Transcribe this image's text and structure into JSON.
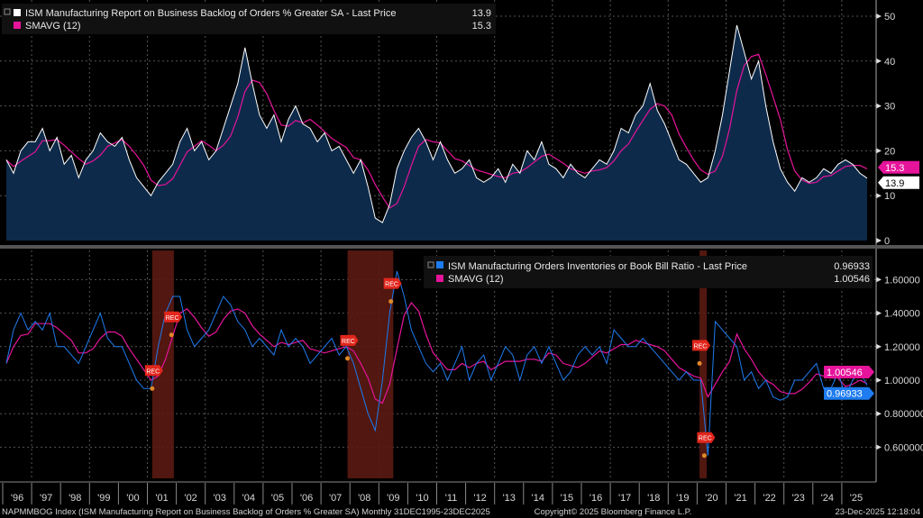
{
  "chart_data": [
    {
      "type": "area",
      "panel": "top",
      "title": "",
      "legend": [
        {
          "label": "ISM Manufacturing Report on Business Backlog of Orders % Greater SA - Last Price",
          "value": "13.9",
          "color": "#ffffff"
        },
        {
          "label": "SMAVG (12)",
          "value": "15.3",
          "color": "#e6149b"
        }
      ],
      "legend_placement": "top-left",
      "start": "1996-01",
      "frequency": "quarterly",
      "values": [
        18,
        15,
        20,
        22,
        22,
        25,
        20,
        23,
        17,
        19,
        14,
        18,
        20,
        24,
        22,
        21,
        23,
        18,
        14,
        12,
        10,
        13,
        15,
        17,
        22,
        25,
        20,
        22,
        18,
        20,
        25,
        30,
        35,
        43,
        35,
        28,
        25,
        28,
        22,
        27,
        30,
        26,
        25,
        22,
        24,
        20,
        21,
        18,
        15,
        18,
        12,
        5,
        4,
        8,
        16,
        20,
        23,
        25,
        22,
        18,
        22,
        18,
        15,
        16,
        18,
        14,
        13,
        14,
        16,
        13,
        17,
        15,
        20,
        18,
        22,
        17,
        16,
        14,
        17,
        15,
        14,
        16,
        18,
        17,
        20,
        25,
        24,
        28,
        30,
        35,
        29,
        26,
        22,
        18,
        17,
        15,
        13,
        14,
        20,
        28,
        38,
        48,
        42,
        36,
        40,
        30,
        22,
        16,
        13,
        11,
        14,
        13,
        14,
        16,
        15,
        17,
        18,
        17,
        15,
        13.9
      ],
      "ylim": [
        0,
        52
      ],
      "yticks": [
        "0",
        "10",
        "20",
        "30",
        "40",
        "50"
      ],
      "tag_last": "13.9",
      "tag_sma": "15.3",
      "colors": {
        "line": "#ffffff",
        "fill": "#0d2a4a",
        "sma": "#e6149b"
      }
    },
    {
      "type": "line",
      "panel": "bottom",
      "legend": [
        {
          "label": "ISM Manufacturing Orders Inventories or Book Bill Ratio - Last Price",
          "value": "0.96933",
          "color": "#1e7cf0"
        },
        {
          "label": "SMAVG (12)",
          "value": "1.00546",
          "color": "#e6149b"
        }
      ],
      "legend_placement": "top-right",
      "start": "1996-01",
      "frequency": "quarterly",
      "values": [
        1.1,
        1.3,
        1.4,
        1.3,
        1.35,
        1.3,
        1.4,
        1.2,
        1.2,
        1.15,
        1.1,
        1.2,
        1.3,
        1.4,
        1.25,
        1.2,
        1.2,
        1.1,
        1.0,
        0.95,
        0.95,
        1.2,
        1.4,
        1.5,
        1.5,
        1.3,
        1.2,
        1.25,
        1.3,
        1.4,
        1.5,
        1.45,
        1.35,
        1.3,
        1.2,
        1.25,
        1.2,
        1.15,
        1.3,
        1.2,
        1.25,
        1.2,
        1.1,
        1.15,
        1.2,
        1.25,
        1.15,
        1.2,
        1.1,
        0.95,
        0.8,
        0.7,
        1.0,
        1.4,
        1.65,
        1.5,
        1.3,
        1.2,
        1.1,
        1.05,
        1.1,
        1.0,
        1.1,
        1.2,
        1.0,
        1.1,
        1.15,
        1.0,
        1.1,
        1.2,
        1.15,
        1.0,
        1.15,
        1.2,
        1.1,
        1.2,
        1.1,
        1.0,
        1.05,
        1.15,
        1.2,
        1.15,
        1.2,
        1.1,
        1.3,
        1.25,
        1.2,
        1.2,
        1.25,
        1.2,
        1.15,
        1.1,
        1.05,
        1.0,
        1.05,
        1.0,
        1.0,
        0.55,
        1.35,
        1.3,
        1.25,
        1.2,
        1.0,
        1.05,
        0.95,
        1.0,
        0.9,
        0.88,
        0.9,
        1.0,
        1.0,
        1.05,
        1.1,
        0.95,
        0.95,
        1.05,
        0.9,
        1.0,
        1.05,
        0.96933
      ],
      "ylim": [
        0.45,
        1.75
      ],
      "yticks": [
        "0.600000",
        "0.800000",
        "1.00000",
        "1.20000",
        "1.40000",
        "1.60000"
      ],
      "ytick_values": [
        0.6,
        0.8,
        1.0,
        1.2,
        1.4,
        1.6
      ],
      "tag_last": "0.96933",
      "tag_sma": "1.00546",
      "colors": {
        "line": "#1e7cf0",
        "sma": "#e6149b"
      },
      "recessions": [
        [
          "2001-03",
          "2001-11"
        ],
        [
          "2007-12",
          "2009-06"
        ],
        [
          "2020-02",
          "2020-04"
        ]
      ],
      "annotations": [
        {
          "label": "REC",
          "date": "2001-03",
          "value": 0.95
        },
        {
          "label": "REC",
          "date": "2001-11",
          "value": 1.27
        },
        {
          "label": "REC",
          "date": "2007-12",
          "value": 1.13
        },
        {
          "label": "REC",
          "date": "2009-06",
          "value": 1.47
        },
        {
          "label": "REC",
          "date": "2020-02",
          "value": 1.1
        },
        {
          "label": "REC",
          "date": "2020-04",
          "value": 0.55
        }
      ]
    }
  ],
  "x_axis": {
    "ticks": [
      "'96",
      "'97",
      "'98",
      "'99",
      "'00",
      "'01",
      "'02",
      "'03",
      "'04",
      "'05",
      "'06",
      "'07",
      "'08",
      "'09",
      "'10",
      "'11",
      "'12",
      "'13",
      "'14",
      "'15",
      "'16",
      "'17",
      "'18",
      "'19",
      "'20",
      "'21",
      "'22",
      "'23",
      "'24",
      "'25"
    ]
  },
  "footer": {
    "description": "NAPMMBOG Index (ISM Manufacturing Report on Business Backlog of Orders % Greater SA) Monthly 31DEC1995-23DEC2025",
    "copyright": "Copyright© 2025 Bloomberg Finance L.P.",
    "timestamp": "23-Dec-2025 12:18:04"
  }
}
